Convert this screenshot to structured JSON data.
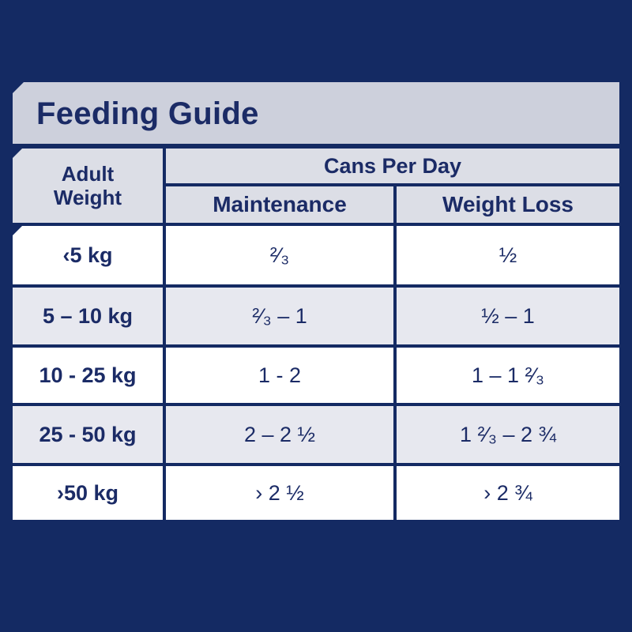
{
  "title": "Feeding Guide",
  "header": {
    "adult_weight_line1": "Adult",
    "adult_weight_line2": "Weight",
    "cans_per_day": "Cans Per Day",
    "maintenance": "Maintenance",
    "weight_loss": "Weight Loss"
  },
  "rows": [
    {
      "weight": "‹5 kg",
      "maintenance": "²⁄₃",
      "weight_loss": "½"
    },
    {
      "weight": "5 – 10 kg",
      "maintenance": "²⁄₃ – 1",
      "weight_loss": "½ – 1"
    },
    {
      "weight": "10 - 25 kg",
      "maintenance": "1 - 2",
      "weight_loss": "1 – 1 ²⁄₃"
    },
    {
      "weight": "25 - 50 kg",
      "maintenance": "2 – 2 ½",
      "weight_loss": "1 ²⁄₃ – 2 ¾"
    },
    {
      "weight": "›50 kg",
      "maintenance": "› 2 ½",
      "weight_loss": "› 2 ¾"
    }
  ],
  "colors": {
    "background": "#142a63",
    "title_bar": "#cdd0dc",
    "header_cell": "#dcdee6",
    "row_light": "#ffffff",
    "row_shade": "#e7e8ef",
    "text": "#1b2b66"
  }
}
